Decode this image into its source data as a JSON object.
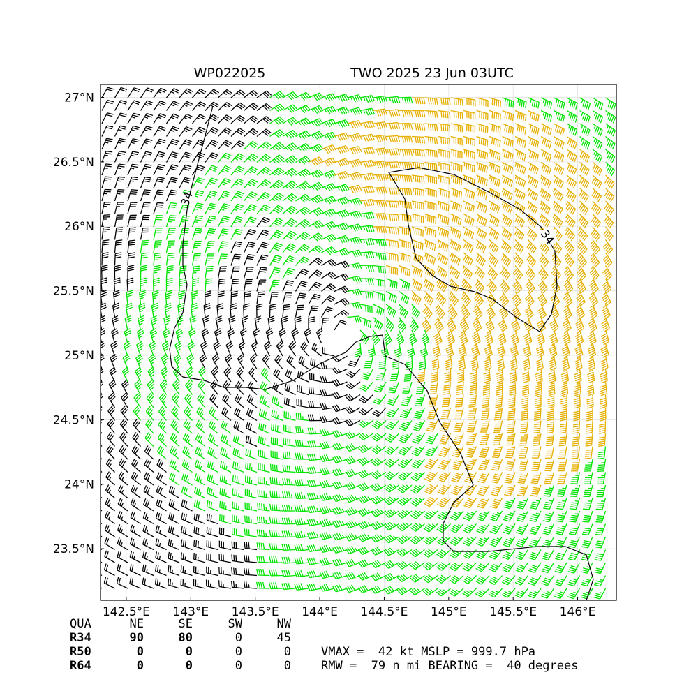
{
  "chart_data": {
    "type": "wind-barb-map",
    "title_left": "WP022025",
    "title_right": "TWO 2025 23 Jun 03UTC",
    "x_ticks": [
      "142.5°E",
      "143°E",
      "143.5°E",
      "144°E",
      "144.5°E",
      "145°E",
      "145.5°E",
      "146°E"
    ],
    "y_ticks": [
      "27°N",
      "26.5°N",
      "26°N",
      "25.5°N",
      "25°N",
      "24.5°N",
      "24°N",
      "23.5°N"
    ],
    "x_tick_values": [
      142.5,
      143,
      143.5,
      144,
      144.5,
      145,
      145.5,
      146
    ],
    "y_tick_values": [
      27,
      26.5,
      26,
      25.5,
      25,
      24.5,
      24,
      23.5
    ],
    "xlim": [
      142.3,
      146.3
    ],
    "ylim": [
      23.1,
      27.1
    ],
    "grid": true,
    "center": {
      "lon": 144.18,
      "lat": 25.12
    },
    "contour_labels": [
      "34",
      "34"
    ],
    "barb_colors": {
      "below_34kt": "#000000",
      "34_to_50kt": "#00e400",
      "above_50kt": "#e6b000"
    },
    "wind_radii": {
      "header": [
        "QUA",
        "NE",
        "SE",
        "SW",
        "NW"
      ],
      "rows": [
        {
          "label": "R34",
          "values": [
            "90",
            "80",
            "0",
            "45"
          ]
        },
        {
          "label": "R50",
          "values": [
            "0",
            "0",
            "0",
            "0"
          ]
        },
        {
          "label": "R64",
          "values": [
            "0",
            "0",
            "0",
            "0"
          ]
        }
      ]
    },
    "summary_lines": [
      "VMAX =  42 kt MSLP = 999.7 hPa",
      "RMW =  79 n mi BEARING =  40 degrees"
    ]
  }
}
